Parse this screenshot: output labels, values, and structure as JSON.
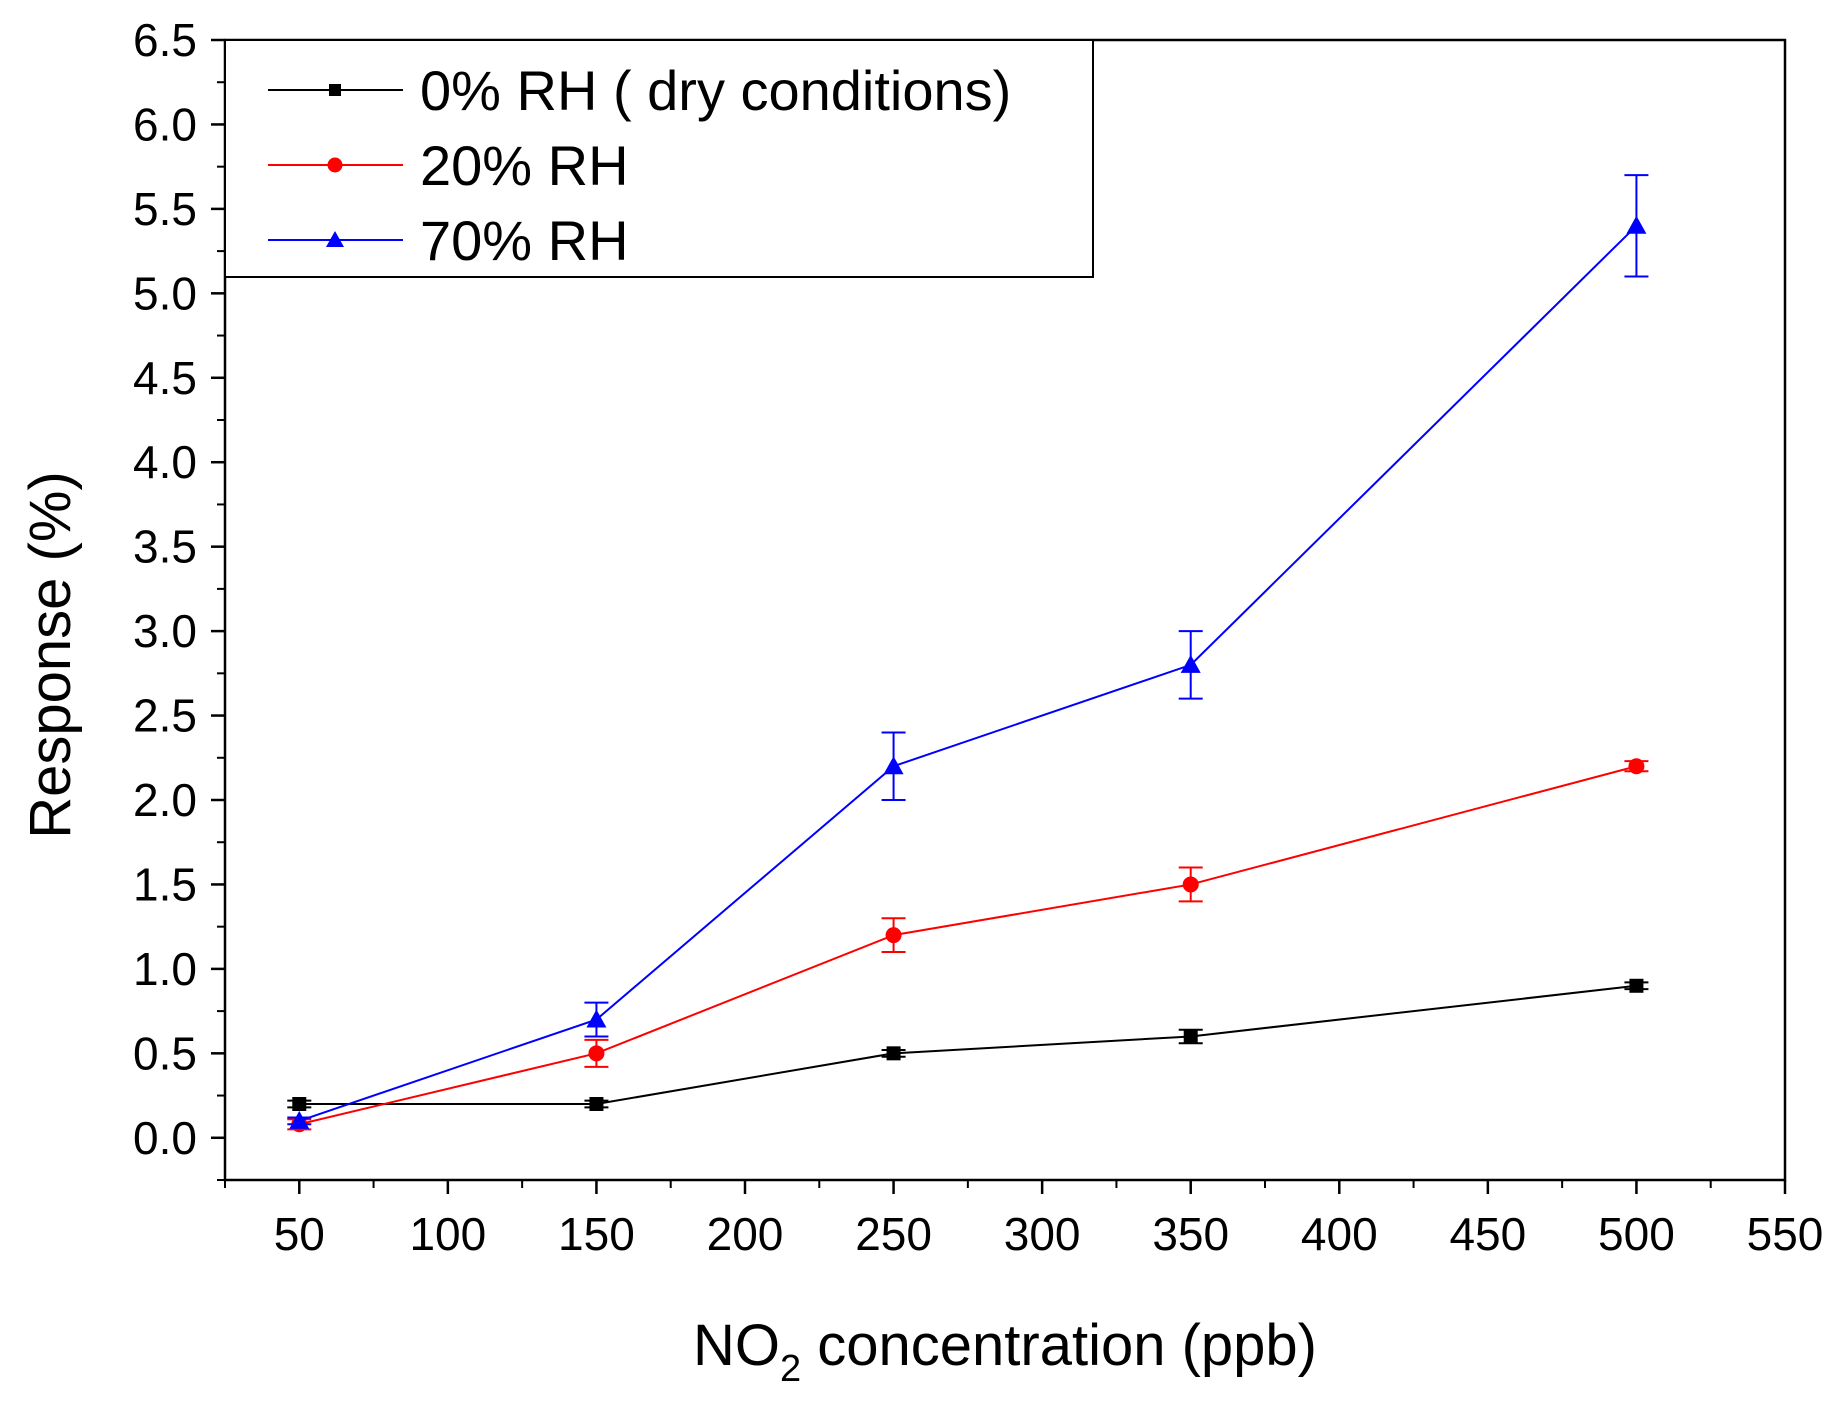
{
  "chart_data": {
    "type": "line",
    "title": "",
    "xlabel": {
      "main": "NO",
      "subscript": "2",
      "rest": " concentration (ppb)"
    },
    "ylabel": "Response (%)",
    "xlim": [
      25,
      550
    ],
    "ylim": [
      -0.25,
      6.5
    ],
    "x_ticks": [
      "50",
      "100",
      "150",
      "200",
      "250",
      "300",
      "350",
      "400",
      "450",
      "500",
      "550"
    ],
    "x_tick_values": [
      50,
      100,
      150,
      200,
      250,
      300,
      350,
      400,
      450,
      500,
      550
    ],
    "y_ticks": [
      "0.0",
      "0.5",
      "1.0",
      "1.5",
      "2.0",
      "2.5",
      "3.0",
      "3.5",
      "4.0",
      "4.5",
      "5.0",
      "5.5",
      "6.0",
      "6.5"
    ],
    "y_tick_values": [
      0,
      0.5,
      1,
      1.5,
      2,
      2.5,
      3,
      3.5,
      4,
      4.5,
      5,
      5.5,
      6,
      6.5
    ],
    "legend_position": "top-left",
    "x": [
      50,
      150,
      250,
      350,
      500
    ],
    "series": [
      {
        "name": "0% RH ( dry conditions)",
        "color": "#000000",
        "marker": "square",
        "values": [
          0.2,
          0.2,
          0.5,
          0.6,
          0.9
        ],
        "errors": [
          0.02,
          0.02,
          0.02,
          0.04,
          0.02
        ]
      },
      {
        "name": "20% RH",
        "color": "#ff0000",
        "marker": "circle",
        "values": [
          0.08,
          0.5,
          1.2,
          1.5,
          2.2
        ],
        "errors": [
          0.03,
          0.08,
          0.1,
          0.1,
          0.03
        ]
      },
      {
        "name": "70% RH",
        "color": "#0000ff",
        "marker": "triangle",
        "values": [
          0.1,
          0.7,
          2.2,
          2.8,
          5.4
        ],
        "errors": [
          0.02,
          0.1,
          0.2,
          0.2,
          0.3
        ]
      }
    ]
  }
}
